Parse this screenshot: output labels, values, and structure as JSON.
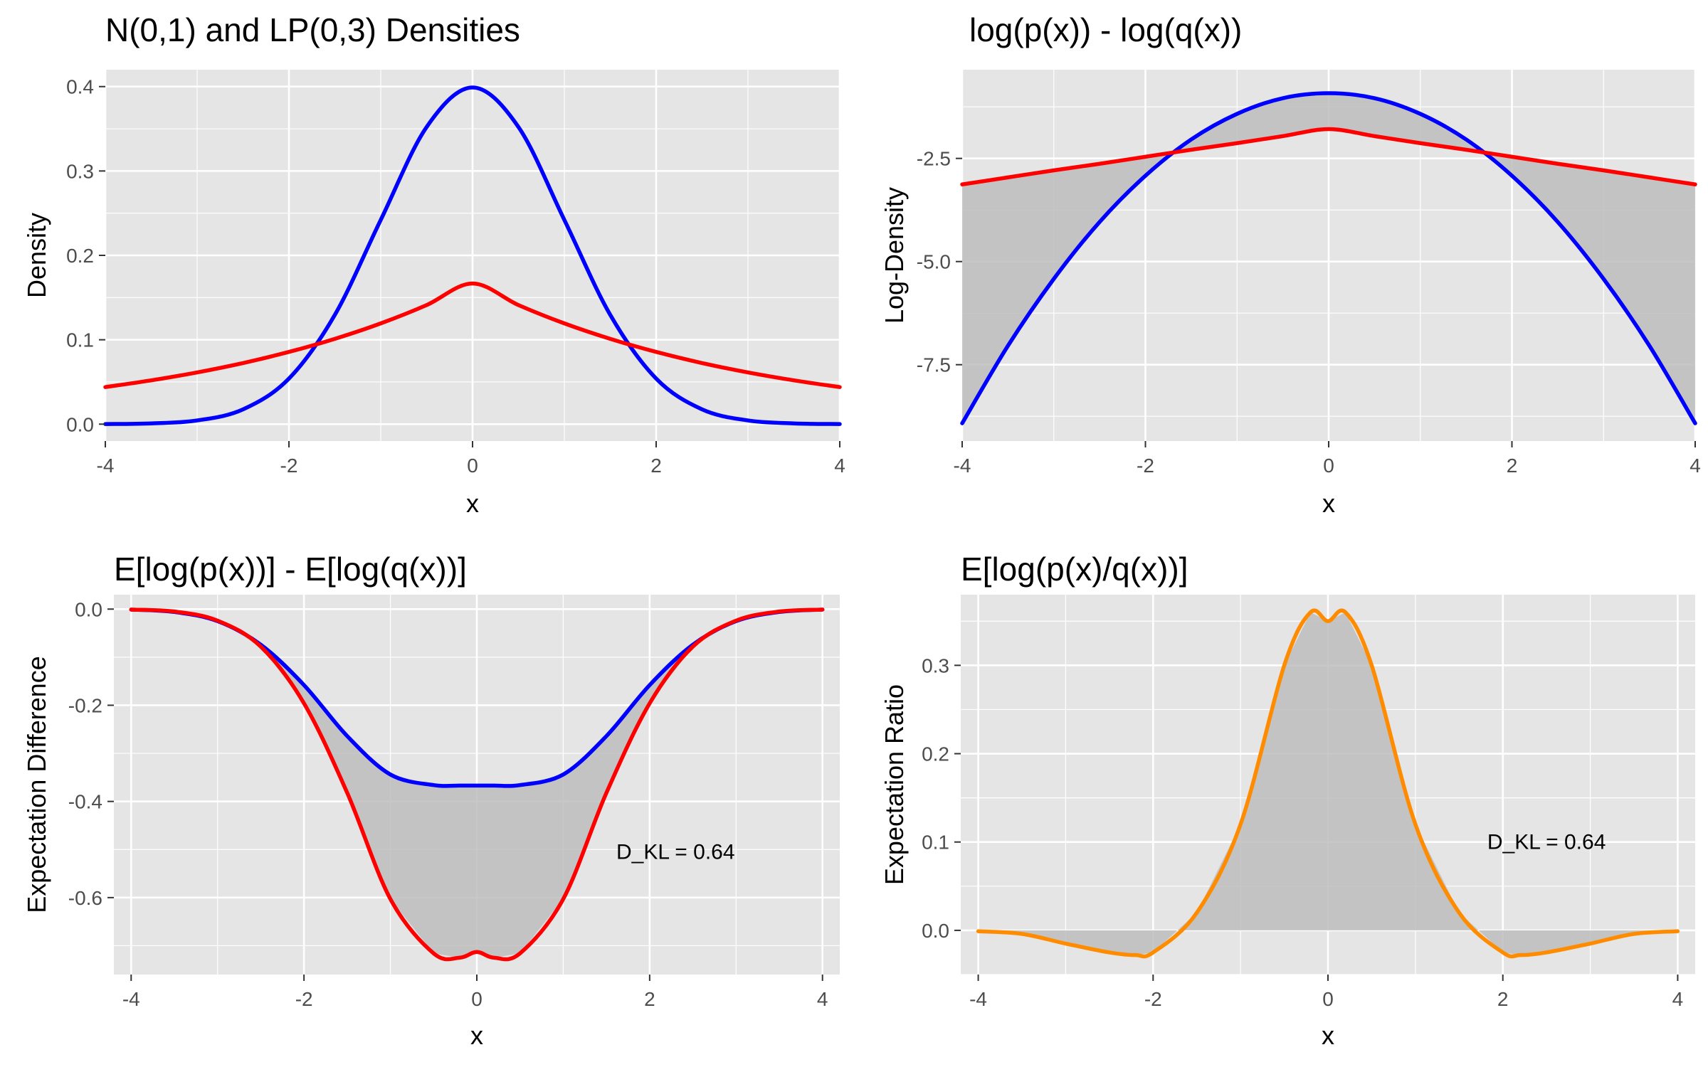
{
  "figure": {
    "colors": {
      "panel_bg": "#e5e5e5",
      "grid": "#ffffff",
      "ribbon": "#bdbdbd",
      "normal": "#0000ff",
      "laplace": "#ff0000",
      "ratio": "#ff8c00",
      "text": "#000000",
      "tick_text": "#4d4d4d"
    }
  },
  "chart_data": [
    {
      "type": "line",
      "title": "N(0,1) and LP(0,3) Densities",
      "xlabel": "x",
      "ylabel": "Density",
      "xlim": [
        -4,
        4
      ],
      "ylim": [
        -0.02,
        0.42
      ],
      "x_ticks": [
        -4,
        -2,
        0,
        2,
        4
      ],
      "x_tick_labels": [
        "-4",
        "-2",
        "0",
        "2",
        "4"
      ],
      "y_ticks": [
        0.0,
        0.1,
        0.2,
        0.3,
        0.4
      ],
      "y_tick_labels": [
        "0.0",
        "0.1",
        "0.2",
        "0.3",
        "0.4"
      ],
      "grid": true,
      "ribbon": false,
      "x": [
        -4,
        -3.5,
        -3,
        -2.5,
        -2,
        -1.5,
        -1,
        -0.5,
        0,
        0.5,
        1,
        1.5,
        2,
        2.5,
        3,
        3.5,
        4
      ],
      "series": [
        {
          "color": "#0000ff",
          "values": [
            0.0001,
            0.0009,
            0.0044,
            0.0175,
            0.054,
            0.1295,
            0.242,
            0.3521,
            0.3989,
            0.3521,
            0.242,
            0.1295,
            0.054,
            0.0175,
            0.0044,
            0.0009,
            0.0001
          ]
        },
        {
          "color": "#ff0000",
          "values": [
            0.0439,
            0.0519,
            0.0613,
            0.0724,
            0.0856,
            0.1011,
            0.1194,
            0.1411,
            0.1667,
            0.1411,
            0.1194,
            0.1011,
            0.0856,
            0.0724,
            0.0613,
            0.0519,
            0.0439
          ]
        }
      ]
    },
    {
      "type": "area",
      "title": "log(p(x)) - log(q(x))",
      "xlabel": "x",
      "ylabel": "Log-Density",
      "xlim": [
        -4,
        4
      ],
      "ylim": [
        -9.35,
        -0.35
      ],
      "x_ticks": [
        -4,
        -2,
        0,
        2,
        4
      ],
      "x_tick_labels": [
        "-4",
        "-2",
        "0",
        "2",
        "4"
      ],
      "y_ticks": [
        -7.5,
        -5.0,
        -2.5
      ],
      "y_tick_labels": [
        "-7.5",
        "-5.0",
        "-2.5"
      ],
      "grid": true,
      "ribbon": true,
      "x": [
        -4,
        -3.5,
        -3,
        -2.5,
        -2,
        -1.5,
        -1,
        -0.5,
        0,
        0.5,
        1,
        1.5,
        2,
        2.5,
        3,
        3.5,
        4
      ],
      "series": [
        {
          "color": "#0000ff",
          "values": [
            -8.92,
            -7.04,
            -5.42,
            -4.04,
            -2.92,
            -2.04,
            -1.42,
            -1.04,
            -0.92,
            -1.04,
            -1.42,
            -2.04,
            -2.92,
            -4.04,
            -5.42,
            -7.04,
            -8.92
          ]
        },
        {
          "color": "#ff0000",
          "values": [
            -3.13,
            -2.96,
            -2.79,
            -2.63,
            -2.46,
            -2.29,
            -2.13,
            -1.96,
            -1.79,
            -1.96,
            -2.13,
            -2.29,
            -2.46,
            -2.63,
            -2.79,
            -2.96,
            -3.13
          ]
        }
      ]
    },
    {
      "type": "area",
      "title": "E[log(p(x))] - E[log(q(x))]",
      "xlabel": "x",
      "ylabel": "Expectation Difference",
      "xlim": [
        -4.2,
        4.2
      ],
      "ylim": [
        -0.76,
        0.03
      ],
      "x_ticks": [
        -4,
        -2,
        0,
        2,
        4
      ],
      "x_tick_labels": [
        "-4",
        "-2",
        "0",
        "2",
        "4"
      ],
      "y_ticks": [
        -0.6,
        -0.4,
        -0.2,
        0.0
      ],
      "y_tick_labels": [
        "-0.6",
        "-0.4",
        "-0.2",
        "0.0"
      ],
      "grid": true,
      "ribbon": true,
      "annotation": {
        "text": "D_KL = 0.64",
        "x": 2.3,
        "y": -0.505
      },
      "x": [
        -4,
        -3.5,
        -3,
        -2.5,
        -2,
        -1.5,
        -1,
        -0.5,
        -0.2,
        0,
        0.2,
        0.5,
        1,
        1.5,
        2,
        2.5,
        3,
        3.5,
        4
      ],
      "series": [
        {
          "color": "#0000ff",
          "values": [
            -0.001,
            -0.006,
            -0.025,
            -0.074,
            -0.158,
            -0.264,
            -0.344,
            -0.366,
            -0.367,
            -0.367,
            -0.367,
            -0.366,
            -0.344,
            -0.264,
            -0.158,
            -0.074,
            -0.025,
            -0.006,
            -0.001
          ]
        },
        {
          "color": "#ff0000",
          "values": [
            -0.001,
            -0.005,
            -0.024,
            -0.078,
            -0.196,
            -0.382,
            -0.603,
            -0.716,
            -0.725,
            -0.713,
            -0.725,
            -0.716,
            -0.603,
            -0.382,
            -0.196,
            -0.078,
            -0.024,
            -0.005,
            -0.001
          ]
        }
      ]
    },
    {
      "type": "area",
      "title": "E[log(p(x)/q(x))]",
      "xlabel": "x",
      "ylabel": "Expectation Ratio",
      "xlim": [
        -4.2,
        4.2
      ],
      "ylim": [
        -0.05,
        0.38
      ],
      "x_ticks": [
        -4,
        -2,
        0,
        2,
        4
      ],
      "x_tick_labels": [
        "-4",
        "-2",
        "0",
        "2",
        "4"
      ],
      "y_ticks": [
        0.0,
        0.1,
        0.2,
        0.3
      ],
      "y_tick_labels": [
        "0.0",
        "0.1",
        "0.2",
        "0.3"
      ],
      "grid": true,
      "ribbon": true,
      "annotation": {
        "text": "D_KL = 0.64",
        "x": 2.5,
        "y": 0.1
      },
      "x": [
        -4,
        -3.5,
        -3,
        -2.5,
        -2.2,
        -2,
        -1.5,
        -1,
        -0.5,
        -0.2,
        0,
        0.2,
        0.5,
        1,
        1.5,
        2,
        2.2,
        2.5,
        3,
        3.5,
        4
      ],
      "series": [
        {
          "color": "#ff8c00",
          "values": [
            -0.001,
            -0.004,
            -0.015,
            -0.025,
            -0.028,
            -0.025,
            0.02,
            0.12,
            0.3,
            0.36,
            0.35,
            0.36,
            0.3,
            0.12,
            0.02,
            -0.025,
            -0.028,
            -0.025,
            -0.015,
            -0.004,
            -0.001
          ]
        }
      ]
    }
  ]
}
